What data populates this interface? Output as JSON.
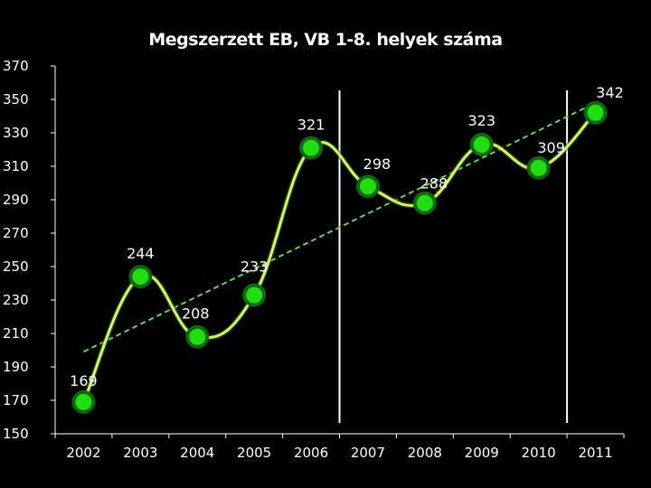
{
  "chart_data": {
    "type": "line",
    "title": "Megszerzett EB, VB 1-8. helyek száma",
    "categories": [
      "2002",
      "2003",
      "2004",
      "2005",
      "2006",
      "2007",
      "2008",
      "2009",
      "2010",
      "2011"
    ],
    "series": [
      {
        "values": [
          169,
          244,
          208,
          233,
          321,
          298,
          288,
          323,
          309,
          342
        ],
        "smooth": true,
        "marker": "circle"
      }
    ],
    "trendline": {
      "type": "linear",
      "style": "dashed"
    },
    "reference_lines_x": [
      "2006.5",
      "2010.5"
    ],
    "ylim": [
      150,
      370
    ],
    "yticks": [
      150,
      170,
      190,
      210,
      230,
      250,
      270,
      290,
      310,
      330,
      350,
      370
    ],
    "xlabel": "",
    "ylabel": "",
    "grid": false,
    "colors": {
      "background": "#000000",
      "line": "#ccff66",
      "marker_fill": "#22dd11",
      "marker_edge": "#116611",
      "trend": "#66dd44",
      "axis": "#ffffff",
      "reference_line": "#ffffff"
    }
  }
}
